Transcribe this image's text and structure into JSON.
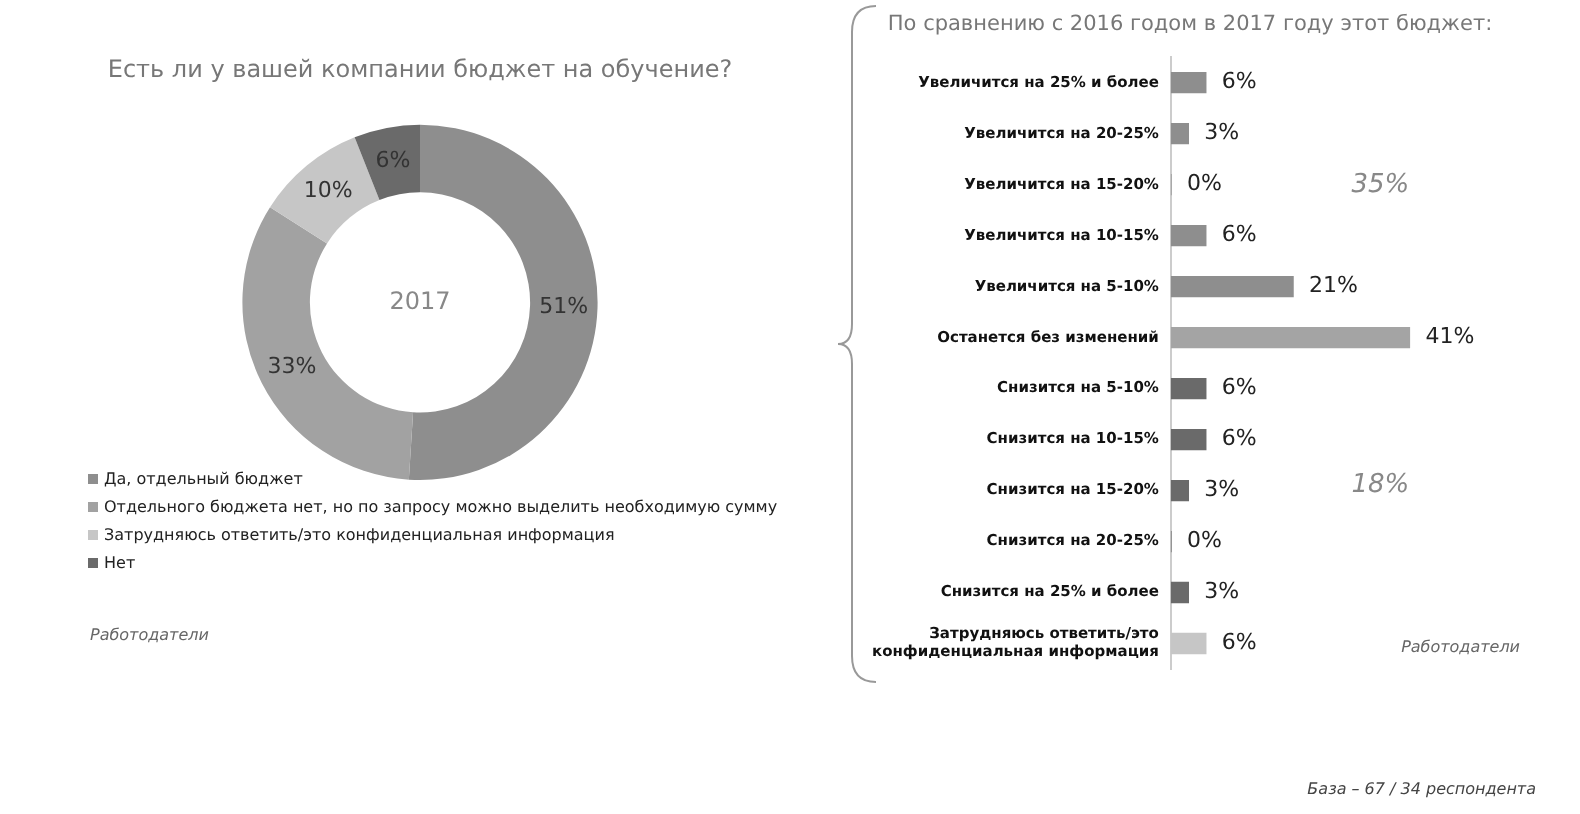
{
  "chart_data": [
    {
      "type": "donut",
      "title": "Есть ли у вашей компании бюджет на обучение?",
      "categories": [
        "Да, отдельный бюджет",
        "Отдельного бюджета нет, но по запросу можно выделить необходимую сумму",
        "Затрудняюсь ответить/это конфиденциальная информация",
        "Нет"
      ],
      "values": [
        51,
        33,
        10,
        6
      ],
      "value_labels": [
        "51%",
        "33%",
        "10%",
        "6%"
      ],
      "colors": [
        "#8e8e8e",
        "#a2a2a2",
        "#c6c6c6",
        "#6a6a6a"
      ],
      "legend": "bottom left",
      "annotations": [
        "2017",
        "Работодатели"
      ]
    },
    {
      "type": "bar",
      "orientation": "horizontal",
      "title": "По сравнению с 2016 годом в 2017 году этот бюджет:",
      "categories": [
        "Увеличится на 25% и более",
        "Увеличится на 20-25%",
        "Увеличится на 15-20%",
        "Увеличится на 10-15%",
        "Увеличится на 5-10%",
        "Останется без изменений",
        "Снизится на 5-10%",
        "Снизится на 10-15%",
        "Снизится на 15-20%",
        "Снизится на 20-25%",
        "Снизится на 25% и более",
        "Затрудняюсь ответить/это конфиденциальная информация"
      ],
      "values": [
        6,
        3,
        0,
        6,
        21,
        41,
        6,
        6,
        3,
        0,
        3,
        6
      ],
      "value_labels": [
        "6%",
        "3%",
        "0%",
        "6%",
        "21%",
        "41%",
        "6%",
        "6%",
        "3%",
        "0%",
        "3%",
        "6%"
      ],
      "colors": [
        "#8e8e8e",
        "#8e8e8e",
        "#8e8e8e",
        "#8e8e8e",
        "#8e8e8e",
        "#a4a4a4",
        "#6a6a6a",
        "#6a6a6a",
        "#6a6a6a",
        "#6a6a6a",
        "#6a6a6a",
        "#c6c6c6"
      ],
      "tick_labels": "y",
      "legend": false,
      "annotations": [
        "35%",
        "18%",
        "Работодатели",
        "База – 67 / 34 респондента"
      ]
    }
  ]
}
